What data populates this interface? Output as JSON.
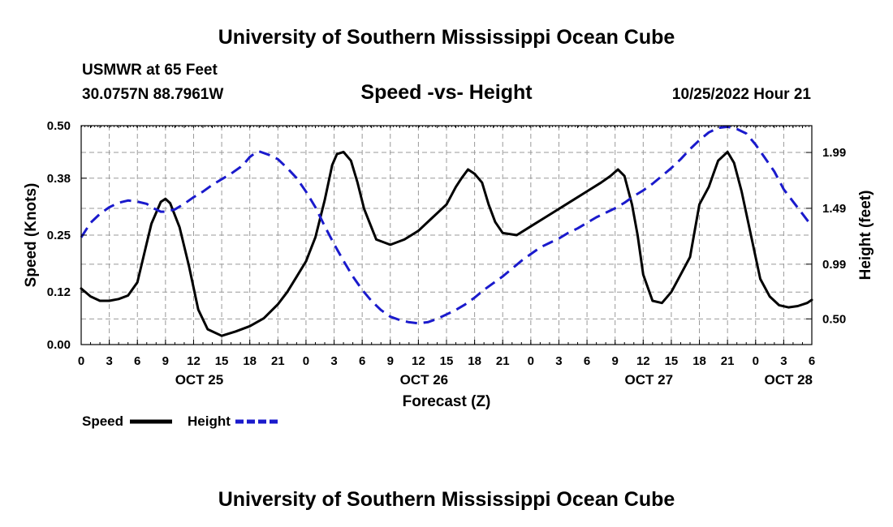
{
  "page": {
    "title_top": "University of Southern Mississippi Ocean Cube",
    "title_bottom": "University of Southern Mississippi Ocean Cube",
    "station_line1": "USMWR at 65 Feet",
    "station_line2": "30.0757N  88.7961W",
    "date_label": "10/25/2022 Hour 21"
  },
  "chart_data": {
    "type": "line",
    "title": "Speed -vs- Height",
    "xlabel": "Forecast (Z)",
    "ylabel": "Speed (Knots)",
    "y2label": "Height (feet)",
    "xlim": [
      0,
      78
    ],
    "ylim": [
      0,
      0.5
    ],
    "y2lim": [
      0.27,
      2.23
    ],
    "grid": true,
    "x_ticks": [
      0,
      3,
      6,
      9,
      12,
      15,
      18,
      21,
      24,
      27,
      30,
      33,
      36,
      39,
      42,
      45,
      48,
      51,
      54,
      57,
      60,
      63,
      66,
      69,
      72,
      75,
      78
    ],
    "x_tick_labels": [
      "0",
      "3",
      "6",
      "9",
      "12",
      "15",
      "18",
      "21",
      "0",
      "3",
      "6",
      "9",
      "12",
      "15",
      "18",
      "21",
      "0",
      "3",
      "6",
      "9",
      "12",
      "15",
      "18",
      "21",
      "0",
      "3",
      "6"
    ],
    "date_labels": [
      {
        "x": 12,
        "label": "OCT 25"
      },
      {
        "x": 36,
        "label": "OCT 26"
      },
      {
        "x": 60,
        "label": "OCT 27"
      },
      {
        "x": 78,
        "label": "OCT 28"
      }
    ],
    "y_ticks": [
      0.0,
      0.12,
      0.25,
      0.38,
      0.5
    ],
    "y_tick_labels": [
      "0.00",
      "0.12",
      "0.25",
      "0.38",
      "0.50"
    ],
    "y2_ticks": [
      0.5,
      0.99,
      1.49,
      1.99
    ],
    "y2_tick_labels": [
      "0.50",
      "0.99",
      "1.49",
      "1.99"
    ],
    "series": [
      {
        "name": "Speed",
        "axis": "left",
        "color": "#000000",
        "dash": "solid",
        "x": [
          0,
          1,
          2,
          3,
          4,
          5,
          6,
          7,
          7.5,
          8.5,
          9,
          9.5,
          10.5,
          11.5,
          12.5,
          13.5,
          15,
          16.5,
          18,
          19.5,
          21,
          22,
          23,
          24,
          25,
          26,
          26.8,
          27.3,
          28,
          28.8,
          29.5,
          30.2,
          31.5,
          33,
          34.5,
          36,
          37.5,
          39,
          40,
          40.6,
          41.3,
          42,
          42.8,
          43.5,
          44.2,
          45,
          46.5,
          48,
          49.5,
          51,
          52.5,
          54,
          55.5,
          56.5,
          57.3,
          58,
          58.8,
          59.4,
          60,
          61,
          62,
          63,
          64,
          65,
          66,
          67,
          67.5,
          68,
          68.5,
          69,
          69.7,
          70.5,
          71.5,
          72.5,
          73.5,
          74.5,
          75.5,
          76.5,
          77.5,
          78
        ],
        "values": [
          0.128,
          0.11,
          0.1,
          0.1,
          0.104,
          0.112,
          0.142,
          0.232,
          0.276,
          0.326,
          0.333,
          0.323,
          0.268,
          0.18,
          0.08,
          0.035,
          0.02,
          0.03,
          0.042,
          0.06,
          0.092,
          0.12,
          0.155,
          0.19,
          0.245,
          0.33,
          0.41,
          0.435,
          0.44,
          0.42,
          0.37,
          0.31,
          0.24,
          0.228,
          0.24,
          0.26,
          0.29,
          0.32,
          0.36,
          0.38,
          0.4,
          0.39,
          0.37,
          0.32,
          0.28,
          0.255,
          0.25,
          0.27,
          0.29,
          0.31,
          0.33,
          0.35,
          0.37,
          0.385,
          0.4,
          0.385,
          0.32,
          0.25,
          0.16,
          0.1,
          0.095,
          0.12,
          0.16,
          0.2,
          0.32,
          0.36,
          0.39,
          0.42,
          0.43,
          0.44,
          0.415,
          0.35,
          0.25,
          0.15,
          0.11,
          0.09,
          0.085,
          0.088,
          0.095,
          0.102
        ]
      },
      {
        "name": "Height",
        "axis": "right",
        "color": "#1a1acc",
        "dash": "dashed",
        "x": [
          0,
          1,
          2,
          3,
          4,
          5,
          6,
          7,
          7.5,
          8.5,
          9,
          10,
          11,
          12,
          13,
          14,
          15,
          16,
          17,
          17.5,
          18,
          18.5,
          19,
          20,
          21,
          22,
          23,
          24,
          25,
          26,
          27,
          28,
          29,
          30,
          31,
          32,
          33,
          34,
          35,
          36,
          37,
          38,
          39,
          40,
          41,
          42,
          43,
          44,
          45,
          46,
          47,
          48,
          49,
          50,
          51,
          52,
          53,
          54,
          55,
          56,
          57,
          58,
          59,
          60,
          61,
          62,
          63,
          64,
          65,
          66,
          67,
          68,
          69,
          70,
          71,
          72,
          73,
          74,
          75,
          76,
          77,
          78
        ],
        "values": [
          1.23,
          1.36,
          1.44,
          1.5,
          1.54,
          1.56,
          1.55,
          1.53,
          1.5,
          1.46,
          1.46,
          1.48,
          1.53,
          1.59,
          1.64,
          1.7,
          1.75,
          1.8,
          1.86,
          1.9,
          1.95,
          1.98,
          2.0,
          1.97,
          1.93,
          1.85,
          1.76,
          1.64,
          1.5,
          1.33,
          1.17,
          1.02,
          0.88,
          0.76,
          0.66,
          0.58,
          0.52,
          0.49,
          0.47,
          0.46,
          0.47,
          0.5,
          0.54,
          0.58,
          0.63,
          0.69,
          0.76,
          0.82,
          0.88,
          0.95,
          1.02,
          1.08,
          1.14,
          1.18,
          1.22,
          1.27,
          1.31,
          1.36,
          1.41,
          1.45,
          1.49,
          1.54,
          1.6,
          1.65,
          1.71,
          1.78,
          1.85,
          1.93,
          2.02,
          2.1,
          2.17,
          2.21,
          2.22,
          2.2,
          2.16,
          2.06,
          1.94,
          1.82,
          1.66,
          1.55,
          1.44,
          1.33
        ]
      }
    ],
    "legend": {
      "placement": "bottom-left",
      "entries": [
        "Speed",
        "Height"
      ]
    }
  }
}
